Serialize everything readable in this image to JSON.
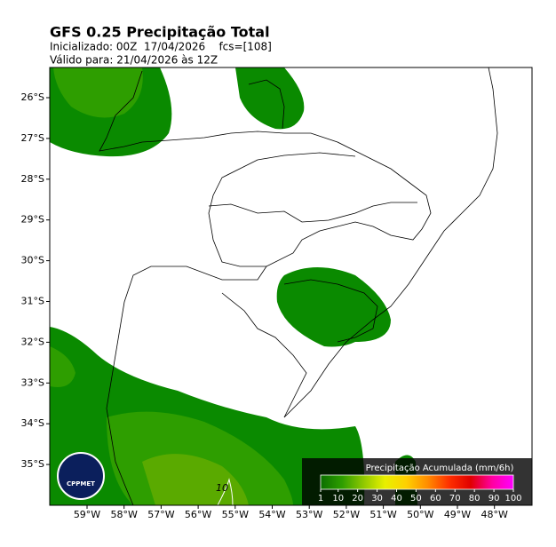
{
  "header": {
    "title": "GFS 0.25 Precipitação Total",
    "init": "Inicializado: 00Z  17/04/2026    fcs=[108]",
    "valid": "Válido para: 21/04/2026 às 12Z"
  },
  "map": {
    "lat_labels": [
      "26°S",
      "27°S",
      "28°S",
      "29°S",
      "30°S",
      "31°S",
      "32°S",
      "33°S",
      "34°S",
      "35°S"
    ],
    "lon_labels": [
      "59°W",
      "58°W",
      "57°W",
      "56°W",
      "55°W",
      "54°W",
      "53°W",
      "52°W",
      "51°W",
      "50°W",
      "49°W",
      "48°W"
    ],
    "contour_label": "10"
  },
  "colorbar": {
    "title": "Precipitação Acumulada (mm/6h)",
    "ticks": [
      1,
      10,
      20,
      30,
      40,
      50,
      60,
      70,
      80,
      90,
      100
    ],
    "colors": [
      "#0a6e00",
      "#2e9e00",
      "#8fc800",
      "#e8f000",
      "#ffd000",
      "#ff8c00",
      "#ff3000",
      "#e00000",
      "#ff00a0",
      "#ff00ff"
    ]
  },
  "logo": {
    "text": "CPPMET"
  }
}
